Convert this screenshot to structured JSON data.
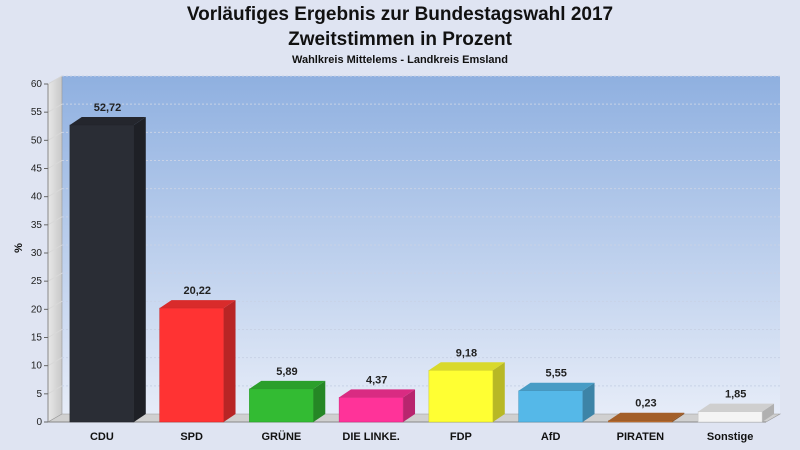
{
  "chart_data": {
    "type": "bar",
    "title": "Vorläufiges Ergebnis zur Bundestagswahl 2017",
    "subtitle": "Zweitstimmen in Prozent",
    "caption": "Wahlkreis Mittelems - Landkreis Emsland",
    "ylabel": "%",
    "ylim": [
      0,
      60
    ],
    "yticks": [
      "0",
      "5",
      "10",
      "15",
      "20",
      "25",
      "30",
      "35",
      "40",
      "45",
      "50",
      "55",
      "60"
    ],
    "grid": true,
    "categories": [
      "CDU",
      "SPD",
      "GRÜNE",
      "DIE LINKE.",
      "FDP",
      "AfD",
      "PIRATEN",
      "Sonstige"
    ],
    "values": [
      52.72,
      20.22,
      5.89,
      4.37,
      9.18,
      5.55,
      0.23,
      1.85
    ],
    "value_labels": [
      "52,72",
      "20,22",
      "5,89",
      "4,37",
      "9,18",
      "5,55",
      "0,23",
      "1,85"
    ],
    "colors": [
      "#2a2d35",
      "#ff3333",
      "#33bb33",
      "#ff3399",
      "#ffff33",
      "#55b8e8",
      "#c07030",
      "#f4f4f4"
    ]
  }
}
